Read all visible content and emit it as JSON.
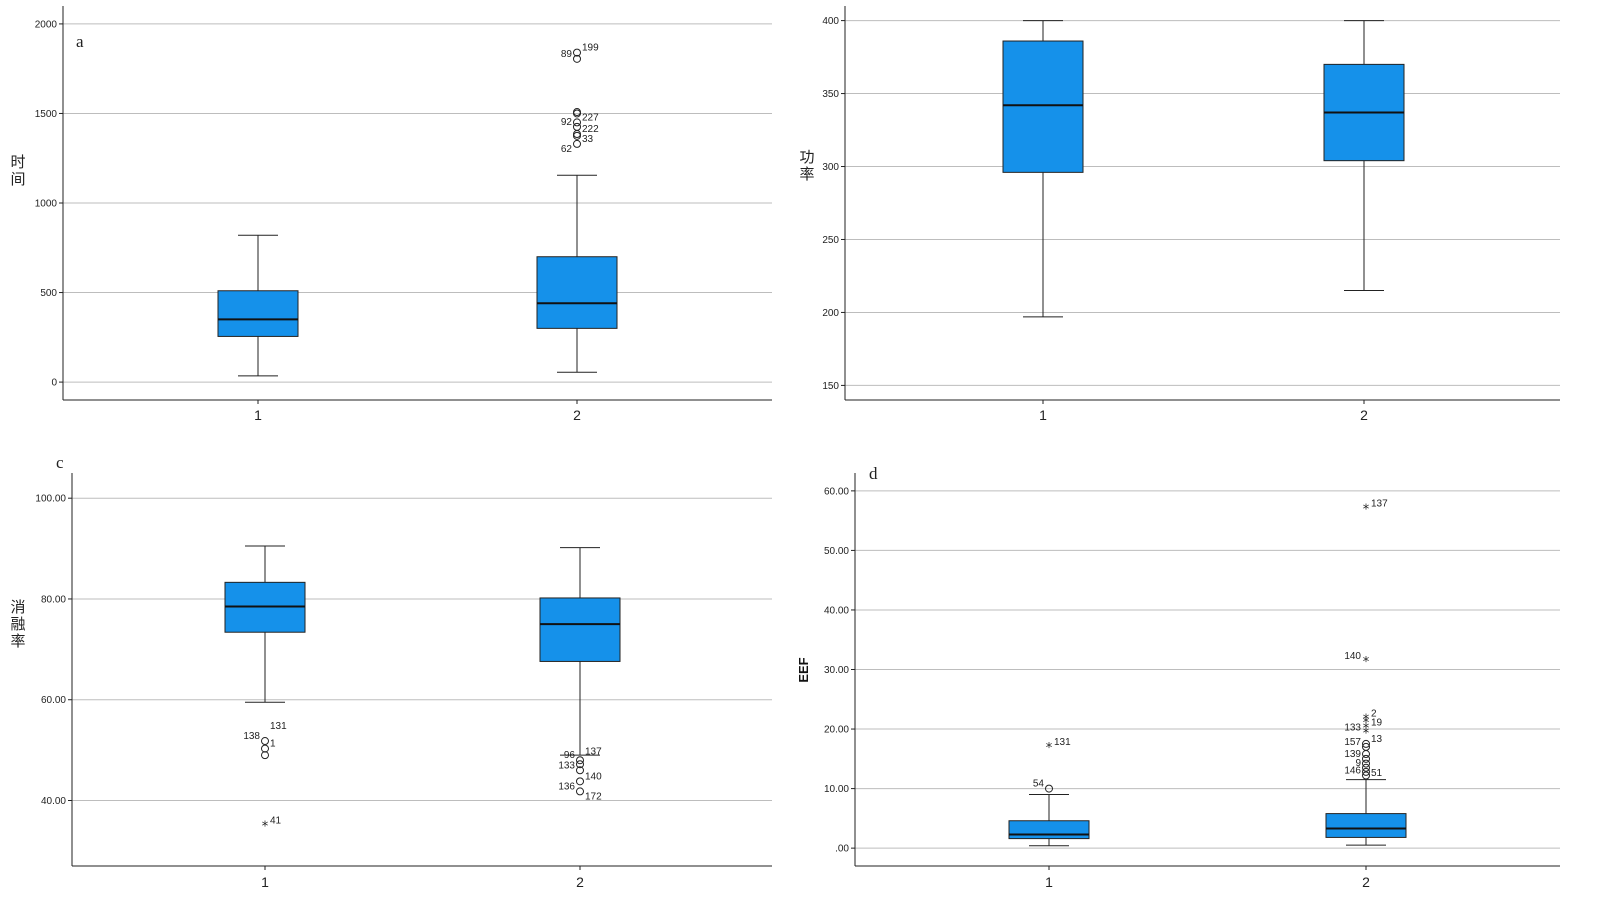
{
  "figure": {
    "accent": "#1591EA"
  },
  "chart_data": [
    {
      "type": "box",
      "panel_label": "a",
      "ylabel": "时间",
      "ylim": [
        -100,
        2100
      ],
      "yticks": [
        0,
        500,
        1000,
        1500,
        2000
      ],
      "ytick_labels": [
        "0",
        "500",
        "1000",
        "1500",
        "2000"
      ],
      "grid": true,
      "categories": [
        "1",
        "2"
      ],
      "boxes": [
        {
          "category": "1",
          "min": 35,
          "q1": 255,
          "median": 350,
          "q3": 510,
          "max": 820,
          "outliers": []
        },
        {
          "category": "2",
          "min": 55,
          "q1": 300,
          "median": 440,
          "q3": 700,
          "max": 1155,
          "outliers": [
            {
              "value": 1840,
              "label": "199",
              "marker": "circle"
            },
            {
              "value": 1805,
              "label": "89",
              "marker": "circle"
            },
            {
              "value": 1508,
              "label": "",
              "marker": "circle"
            },
            {
              "value": 1500,
              "label": "",
              "marker": "circle"
            },
            {
              "value": 1450,
              "label": "227",
              "marker": "circle"
            },
            {
              "value": 1425,
              "label": "92",
              "marker": "circle"
            },
            {
              "value": 1385,
              "label": "222",
              "marker": "circle"
            },
            {
              "value": 1375,
              "label": "",
              "marker": "circle"
            },
            {
              "value": 1330,
              "label": "33",
              "marker": "circle"
            },
            {
              "value": 1275,
              "label": "62",
              "marker": "none"
            }
          ]
        }
      ]
    },
    {
      "type": "box",
      "panel_label": "",
      "ylabel": "功率",
      "ylim": [
        140,
        410
      ],
      "yticks": [
        150,
        200,
        250,
        300,
        350,
        400
      ],
      "ytick_labels": [
        "150",
        "200",
        "250",
        "300",
        "350",
        "400"
      ],
      "grid": true,
      "categories": [
        "1",
        "2"
      ],
      "boxes": [
        {
          "category": "1",
          "min": 197,
          "q1": 296,
          "median": 342,
          "q3": 386,
          "max": 400,
          "outliers": []
        },
        {
          "category": "2",
          "min": 215,
          "q1": 304,
          "median": 337,
          "q3": 370,
          "max": 400,
          "outliers": []
        }
      ]
    },
    {
      "type": "box",
      "panel_label": "c",
      "ylabel": "消融率",
      "ylim": [
        27,
        105
      ],
      "yticks": [
        40,
        60,
        80,
        100
      ],
      "ytick_labels": [
        "40.00",
        "60.00",
        "80.00",
        "100.00"
      ],
      "grid": true,
      "categories": [
        "1",
        "2"
      ],
      "boxes": [
        {
          "category": "1",
          "min": 59.5,
          "q1": 73.4,
          "median": 78.5,
          "q3": 83.3,
          "max": 90.5,
          "outliers": [
            {
              "value": 53.8,
              "label": "131",
              "marker": "none"
            },
            {
              "value": 51.8,
              "label": "138",
              "marker": "circle"
            },
            {
              "value": 50.3,
              "label": "1",
              "marker": "circle"
            },
            {
              "value": 49.0,
              "label": "",
              "marker": "circle"
            },
            {
              "value": 35.0,
              "label": "41",
              "marker": "star"
            }
          ]
        },
        {
          "category": "2",
          "min": 49.0,
          "q1": 67.6,
          "median": 75.0,
          "q3": 80.2,
          "max": 90.2,
          "outliers": [
            {
              "value": 48.7,
              "label": "137",
              "marker": "none"
            },
            {
              "value": 48.0,
              "label": "96",
              "marker": "circle"
            },
            {
              "value": 47.2,
              "label": "",
              "marker": "circle"
            },
            {
              "value": 46.0,
              "label": "133",
              "marker": "circle"
            },
            {
              "value": 43.8,
              "label": "140",
              "marker": "circle"
            },
            {
              "value": 41.8,
              "label": "136",
              "marker": "circle"
            },
            {
              "value": 39.8,
              "label": "172",
              "marker": "none"
            }
          ]
        }
      ]
    },
    {
      "type": "box",
      "panel_label": "d",
      "ylabel": "EEF",
      "ylim": [
        -3,
        63
      ],
      "yticks": [
        0,
        10,
        20,
        30,
        40,
        50,
        60
      ],
      "ytick_labels": [
        ".00",
        "10.00",
        "20.00",
        "30.00",
        "40.00",
        "50.00",
        "60.00"
      ],
      "grid": true,
      "categories": [
        "1",
        "2"
      ],
      "boxes": [
        {
          "category": "1",
          "min": 0.4,
          "q1": 1.6,
          "median": 2.3,
          "q3": 4.6,
          "max": 9.0,
          "outliers": [
            {
              "value": 17.0,
              "label": "131",
              "marker": "star"
            },
            {
              "value": 10.0,
              "label": "54",
              "marker": "circle"
            }
          ]
        },
        {
          "category": "2",
          "min": 0.5,
          "q1": 1.8,
          "median": 3.3,
          "q3": 5.8,
          "max": 11.5,
          "outliers": [
            {
              "value": 57.0,
              "label": "137",
              "marker": "star"
            },
            {
              "value": 31.4,
              "label": "140",
              "marker": "star"
            },
            {
              "value": 21.8,
              "label": "2",
              "marker": "star"
            },
            {
              "value": 21.2,
              "label": "",
              "marker": "star"
            },
            {
              "value": 20.3,
              "label": "19",
              "marker": "star"
            },
            {
              "value": 19.4,
              "label": "133",
              "marker": "star"
            },
            {
              "value": 17.5,
              "label": "13",
              "marker": "circle"
            },
            {
              "value": 17.0,
              "label": "157",
              "marker": "circle"
            },
            {
              "value": 15.8,
              "label": "",
              "marker": "circle"
            },
            {
              "value": 15.0,
              "label": "139",
              "marker": "circle"
            },
            {
              "value": 14.2,
              "label": "",
              "marker": "circle"
            },
            {
              "value": 13.5,
              "label": "9",
              "marker": "circle"
            },
            {
              "value": 12.8,
              "label": "",
              "marker": "circle"
            },
            {
              "value": 12.2,
              "label": "146",
              "marker": "circle"
            },
            {
              "value": 11.8,
              "label": "51",
              "marker": "none"
            }
          ]
        }
      ]
    }
  ]
}
